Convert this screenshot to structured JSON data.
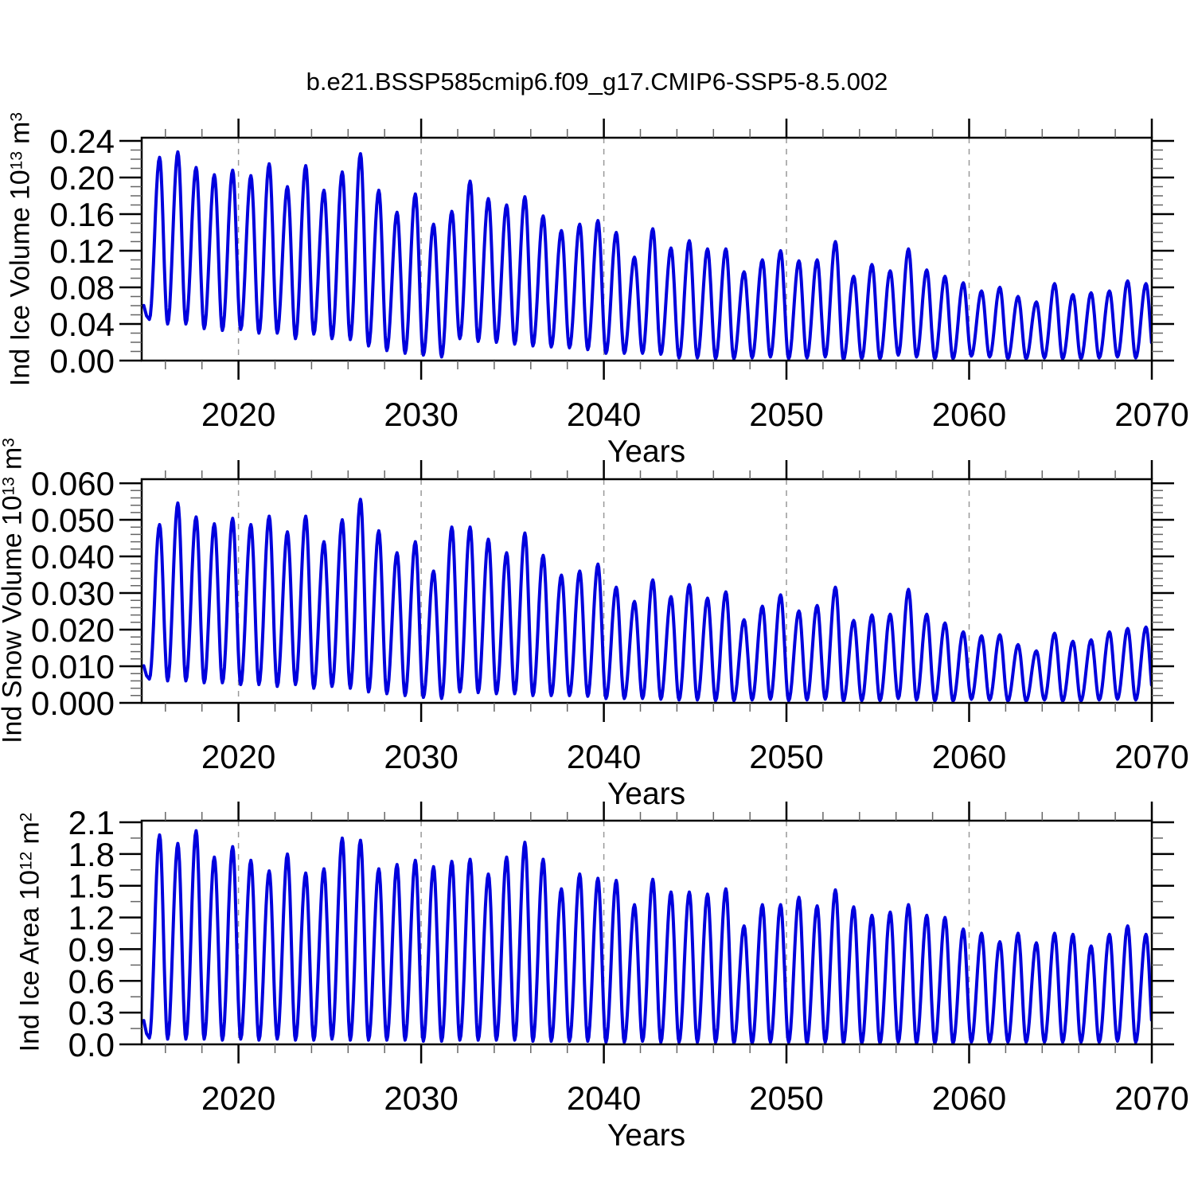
{
  "title": "b.e21.BSSP585cmip6.f09_g17.CMIP6-SSP5-8.5.002",
  "xlabel": "Years",
  "line_color": "#0000dd",
  "grid_color": "#999999",
  "axis_color": "#000000",
  "minor_tick_color": "#666666",
  "panels": [
    {
      "ylabel_base": "Ind Ice Volume",
      "scale_base": "10",
      "scale_exp": "13",
      "unit": "m",
      "unit_exp": "3"
    },
    {
      "ylabel_base": "Ind Snow Volume",
      "scale_base": "10",
      "scale_exp": "13",
      "unit": "m",
      "unit_exp": "3"
    },
    {
      "ylabel_base": "Ind Ice Area",
      "scale_base": "10",
      "scale_exp": "12",
      "unit": "m",
      "unit_exp": "2"
    }
  ],
  "chart_data": [
    {
      "type": "line",
      "title": "b.e21.BSSP585cmip6.f09_g17.CMIP6-SSP5-8.5.002",
      "ylabel": "Ind Ice Volume 10^13 m^3",
      "xlabel": "Years",
      "legend": "none",
      "grid": "vertical dashed gridlines at decades",
      "x_range": [
        2014.7,
        2070
      ],
      "y_range": [
        0,
        0.2435
      ],
      "x_major_ticks": [
        2020,
        2030,
        2040,
        2050,
        2060,
        2070
      ],
      "x_tick_labels": [
        "2020",
        "2030",
        "2040",
        "2050",
        "2060",
        "2070"
      ],
      "x_minor_step": 2,
      "x_gridlines": [
        2020,
        2030,
        2040,
        2050,
        2060
      ],
      "y_major_ticks": [
        0,
        0.04,
        0.08,
        0.12,
        0.16,
        0.2,
        0.24
      ],
      "y_tick_labels": [
        "0.00",
        "0.04",
        "0.08",
        "0.12",
        "0.16",
        "0.20",
        "0.24"
      ],
      "y_minor_step": 0.01,
      "seasonality": {
        "trough_year_frac": 0.12,
        "peak_year_frac": 0.68
      },
      "years": [
        2015,
        2016,
        2017,
        2018,
        2019,
        2020,
        2021,
        2022,
        2023,
        2024,
        2025,
        2026,
        2027,
        2028,
        2029,
        2030,
        2031,
        2032,
        2033,
        2034,
        2035,
        2036,
        2037,
        2038,
        2039,
        2040,
        2041,
        2042,
        2043,
        2044,
        2045,
        2046,
        2047,
        2048,
        2049,
        2050,
        2051,
        2052,
        2053,
        2054,
        2055,
        2056,
        2057,
        2058,
        2059,
        2060,
        2061,
        2062,
        2063,
        2064,
        2065,
        2066,
        2067,
        2068,
        2069
      ],
      "annual_peaks": [
        0.222,
        0.228,
        0.211,
        0.203,
        0.208,
        0.202,
        0.215,
        0.19,
        0.213,
        0.186,
        0.206,
        0.226,
        0.186,
        0.162,
        0.182,
        0.149,
        0.163,
        0.196,
        0.177,
        0.17,
        0.179,
        0.158,
        0.142,
        0.149,
        0.153,
        0.14,
        0.113,
        0.144,
        0.123,
        0.131,
        0.122,
        0.122,
        0.097,
        0.11,
        0.12,
        0.109,
        0.11,
        0.13,
        0.092,
        0.105,
        0.098,
        0.122,
        0.099,
        0.092,
        0.085,
        0.076,
        0.08,
        0.07,
        0.064,
        0.084,
        0.072,
        0.074,
        0.076,
        0.087,
        0.084
      ],
      "annual_troughs": [
        0.045,
        0.04,
        0.04,
        0.035,
        0.033,
        0.034,
        0.03,
        0.03,
        0.024,
        0.029,
        0.024,
        0.023,
        0.016,
        0.011,
        0.008,
        0.006,
        0.004,
        0.024,
        0.021,
        0.02,
        0.018,
        0.016,
        0.015,
        0.014,
        0.012,
        0.008,
        0.008,
        0.008,
        0.007,
        0.003,
        0.003,
        0.002,
        0.002,
        0.003,
        0.004,
        0.002,
        0.003,
        0.004,
        0.001,
        0.002,
        0.002,
        0.006,
        0.004,
        0.002,
        0.002,
        0.005,
        0.004,
        0.002,
        0.002,
        0.003,
        0.002,
        0.002,
        0.003,
        0.004,
        0.003
      ]
    },
    {
      "type": "line",
      "ylabel": "Ind Snow Volume 10^13 m^3",
      "xlabel": "Years",
      "legend": "none",
      "grid": "vertical dashed gridlines at decades",
      "x_range": [
        2014.7,
        2070
      ],
      "y_range": [
        0,
        0.0611
      ],
      "x_major_ticks": [
        2020,
        2030,
        2040,
        2050,
        2060,
        2070
      ],
      "x_tick_labels": [
        "2020",
        "2030",
        "2040",
        "2050",
        "2060",
        "2070"
      ],
      "x_minor_step": 2,
      "x_gridlines": [
        2020,
        2030,
        2040,
        2050,
        2060
      ],
      "y_major_ticks": [
        0,
        0.01,
        0.02,
        0.03,
        0.04,
        0.05,
        0.06
      ],
      "y_tick_labels": [
        "0.000",
        "0.010",
        "0.020",
        "0.030",
        "0.040",
        "0.050",
        "0.060"
      ],
      "y_minor_step": 0.002,
      "seasonality": {
        "trough_year_frac": 0.12,
        "peak_year_frac": 0.68
      },
      "years": [
        2015,
        2016,
        2017,
        2018,
        2019,
        2020,
        2021,
        2022,
        2023,
        2024,
        2025,
        2026,
        2027,
        2028,
        2029,
        2030,
        2031,
        2032,
        2033,
        2034,
        2035,
        2036,
        2037,
        2038,
        2039,
        2040,
        2041,
        2042,
        2043,
        2044,
        2045,
        2046,
        2047,
        2048,
        2049,
        2050,
        2051,
        2052,
        2053,
        2054,
        2055,
        2056,
        2057,
        2058,
        2059,
        2060,
        2061,
        2062,
        2063,
        2064,
        2065,
        2066,
        2067,
        2068,
        2069
      ],
      "annual_peaks": [
        0.0487,
        0.0546,
        0.0508,
        0.0489,
        0.0504,
        0.0487,
        0.051,
        0.0467,
        0.051,
        0.044,
        0.05,
        0.0556,
        0.047,
        0.041,
        0.044,
        0.036,
        0.048,
        0.048,
        0.0447,
        0.041,
        0.0464,
        0.0403,
        0.0349,
        0.036,
        0.0379,
        0.0316,
        0.0277,
        0.0336,
        0.029,
        0.0323,
        0.0286,
        0.0303,
        0.0227,
        0.0264,
        0.0295,
        0.0251,
        0.0266,
        0.0316,
        0.0225,
        0.024,
        0.0242,
        0.031,
        0.0242,
        0.0218,
        0.0194,
        0.0183,
        0.0186,
        0.0159,
        0.0142,
        0.019,
        0.0168,
        0.0172,
        0.0194,
        0.0203,
        0.0207
      ],
      "annual_troughs": [
        0.0065,
        0.006,
        0.006,
        0.0055,
        0.0055,
        0.005,
        0.005,
        0.0045,
        0.005,
        0.004,
        0.0045,
        0.004,
        0.003,
        0.0025,
        0.002,
        0.0015,
        0.0012,
        0.003,
        0.0028,
        0.0025,
        0.0025,
        0.002,
        0.002,
        0.002,
        0.0018,
        0.0012,
        0.0012,
        0.0012,
        0.001,
        0.0008,
        0.0008,
        0.0006,
        0.0006,
        0.0008,
        0.001,
        0.0006,
        0.0008,
        0.001,
        0.0005,
        0.0006,
        0.0006,
        0.0012,
        0.0008,
        0.0005,
        0.0005,
        0.001,
        0.0008,
        0.0005,
        0.0005,
        0.0008,
        0.0005,
        0.0005,
        0.0008,
        0.001,
        0.0008
      ]
    },
    {
      "type": "line",
      "ylabel": "Ind Ice Area 10^12 m^2",
      "xlabel": "Years",
      "legend": "none",
      "grid": "vertical dashed gridlines at decades",
      "x_range": [
        2014.7,
        2070
      ],
      "y_range": [
        0,
        2.115
      ],
      "x_major_ticks": [
        2020,
        2030,
        2040,
        2050,
        2060,
        2070
      ],
      "x_tick_labels": [
        "2020",
        "2030",
        "2040",
        "2050",
        "2060",
        "2070"
      ],
      "x_minor_step": 2,
      "x_gridlines": [
        2020,
        2030,
        2040,
        2050,
        2060
      ],
      "y_major_ticks": [
        0,
        0.3,
        0.6,
        0.9,
        1.2,
        1.5,
        1.8,
        2.1
      ],
      "y_tick_labels": [
        "0.0",
        "0.3",
        "0.6",
        "0.9",
        "1.2",
        "1.5",
        "1.8",
        "2.1"
      ],
      "y_minor_step": 0.15,
      "seasonality": {
        "trough_year_frac": 0.12,
        "peak_year_frac": 0.68
      },
      "years": [
        2015,
        2016,
        2017,
        2018,
        2019,
        2020,
        2021,
        2022,
        2023,
        2024,
        2025,
        2026,
        2027,
        2028,
        2029,
        2030,
        2031,
        2032,
        2033,
        2034,
        2035,
        2036,
        2037,
        2038,
        2039,
        2040,
        2041,
        2042,
        2043,
        2044,
        2045,
        2046,
        2047,
        2048,
        2049,
        2050,
        2051,
        2052,
        2053,
        2054,
        2055,
        2056,
        2057,
        2058,
        2059,
        2060,
        2061,
        2062,
        2063,
        2064,
        2065,
        2066,
        2067,
        2068,
        2069
      ],
      "annual_peaks": [
        1.98,
        1.9,
        2.02,
        1.77,
        1.87,
        1.74,
        1.64,
        1.8,
        1.62,
        1.66,
        1.95,
        1.93,
        1.66,
        1.7,
        1.74,
        1.68,
        1.73,
        1.75,
        1.61,
        1.77,
        1.91,
        1.75,
        1.47,
        1.61,
        1.57,
        1.55,
        1.32,
        1.56,
        1.44,
        1.44,
        1.42,
        1.47,
        1.12,
        1.32,
        1.32,
        1.39,
        1.31,
        1.46,
        1.3,
        1.22,
        1.25,
        1.32,
        1.22,
        1.2,
        1.09,
        1.05,
        0.97,
        1.05,
        0.96,
        1.05,
        1.04,
        0.93,
        1.04,
        1.12,
        1.04
      ],
      "annual_troughs": [
        0.06,
        0.05,
        0.05,
        0.05,
        0.04,
        0.05,
        0.04,
        0.05,
        0.04,
        0.04,
        0.05,
        0.04,
        0.04,
        0.04,
        0.04,
        0.03,
        0.03,
        0.04,
        0.04,
        0.04,
        0.04,
        0.03,
        0.03,
        0.03,
        0.03,
        0.02,
        0.02,
        0.03,
        0.02,
        0.02,
        0.02,
        0.02,
        0.01,
        0.01,
        0.02,
        0.02,
        0.01,
        0.02,
        0.01,
        0.01,
        0.01,
        0.02,
        0.01,
        0.01,
        0.01,
        0.02,
        0.02,
        0.02,
        0.02,
        0.02,
        0.02,
        0.02,
        0.02,
        0.03,
        0.02
      ]
    }
  ]
}
